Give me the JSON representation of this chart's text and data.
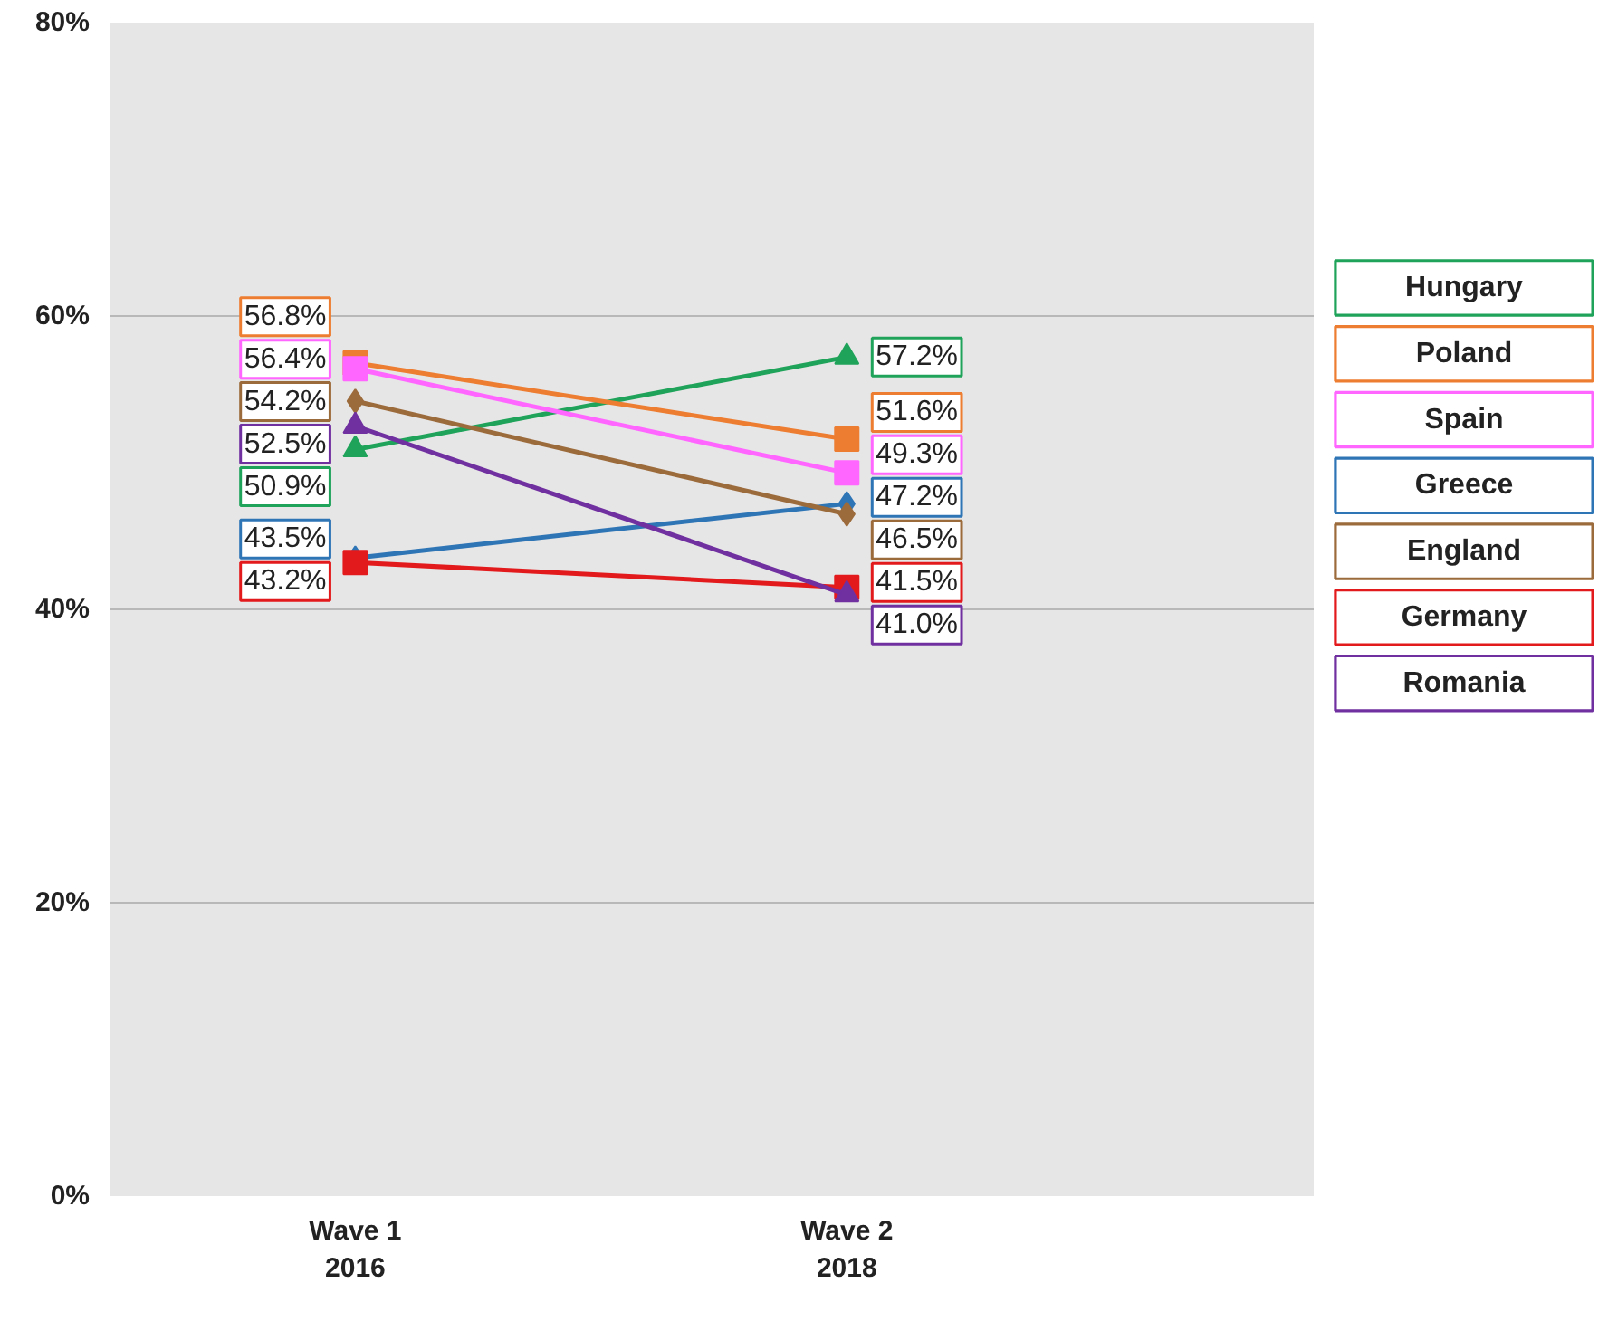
{
  "chart_data": {
    "type": "line",
    "categories": [
      "Wave 1\n2016",
      "Wave 2\n2018"
    ],
    "ylim": [
      0,
      80
    ],
    "yticks": [
      {
        "value": 0,
        "label": "0%"
      },
      {
        "value": 20,
        "label": "20%"
      },
      {
        "value": 40,
        "label": "40%"
      },
      {
        "value": 60,
        "label": "60%"
      },
      {
        "value": 80,
        "label": "80%"
      }
    ],
    "grid": "y",
    "legend": "right",
    "series": [
      {
        "name": "Hungary",
        "color": "#1fa35a",
        "marker": "triangle",
        "values": [
          50.9,
          57.2
        ],
        "value_labels": [
          "50.9%",
          "57.2%"
        ]
      },
      {
        "name": "Poland",
        "color": "#ed7d31",
        "marker": "square",
        "values": [
          56.8,
          51.6
        ],
        "value_labels": [
          "56.8%",
          "51.6%"
        ]
      },
      {
        "name": "Spain",
        "color": "#ff66ff",
        "marker": "square",
        "values": [
          56.4,
          49.3
        ],
        "value_labels": [
          "56.4%",
          "49.3%"
        ]
      },
      {
        "name": "Greece",
        "color": "#2e75b6",
        "marker": "diamond",
        "values": [
          43.5,
          47.2
        ],
        "value_labels": [
          "43.5%",
          "47.2%"
        ]
      },
      {
        "name": "England",
        "color": "#9c6b3c",
        "marker": "diamond",
        "values": [
          54.2,
          46.5
        ],
        "value_labels": [
          "54.2%",
          "46.5%"
        ]
      },
      {
        "name": "Germany",
        "color": "#e31a1c",
        "marker": "square",
        "values": [
          43.2,
          41.5
        ],
        "value_labels": [
          "43.2%",
          "41.5%"
        ]
      },
      {
        "name": "Romania",
        "color": "#7030a0",
        "marker": "triangle",
        "values": [
          52.5,
          41.0
        ],
        "value_labels": [
          "52.5%",
          "41.0%"
        ]
      }
    ]
  }
}
